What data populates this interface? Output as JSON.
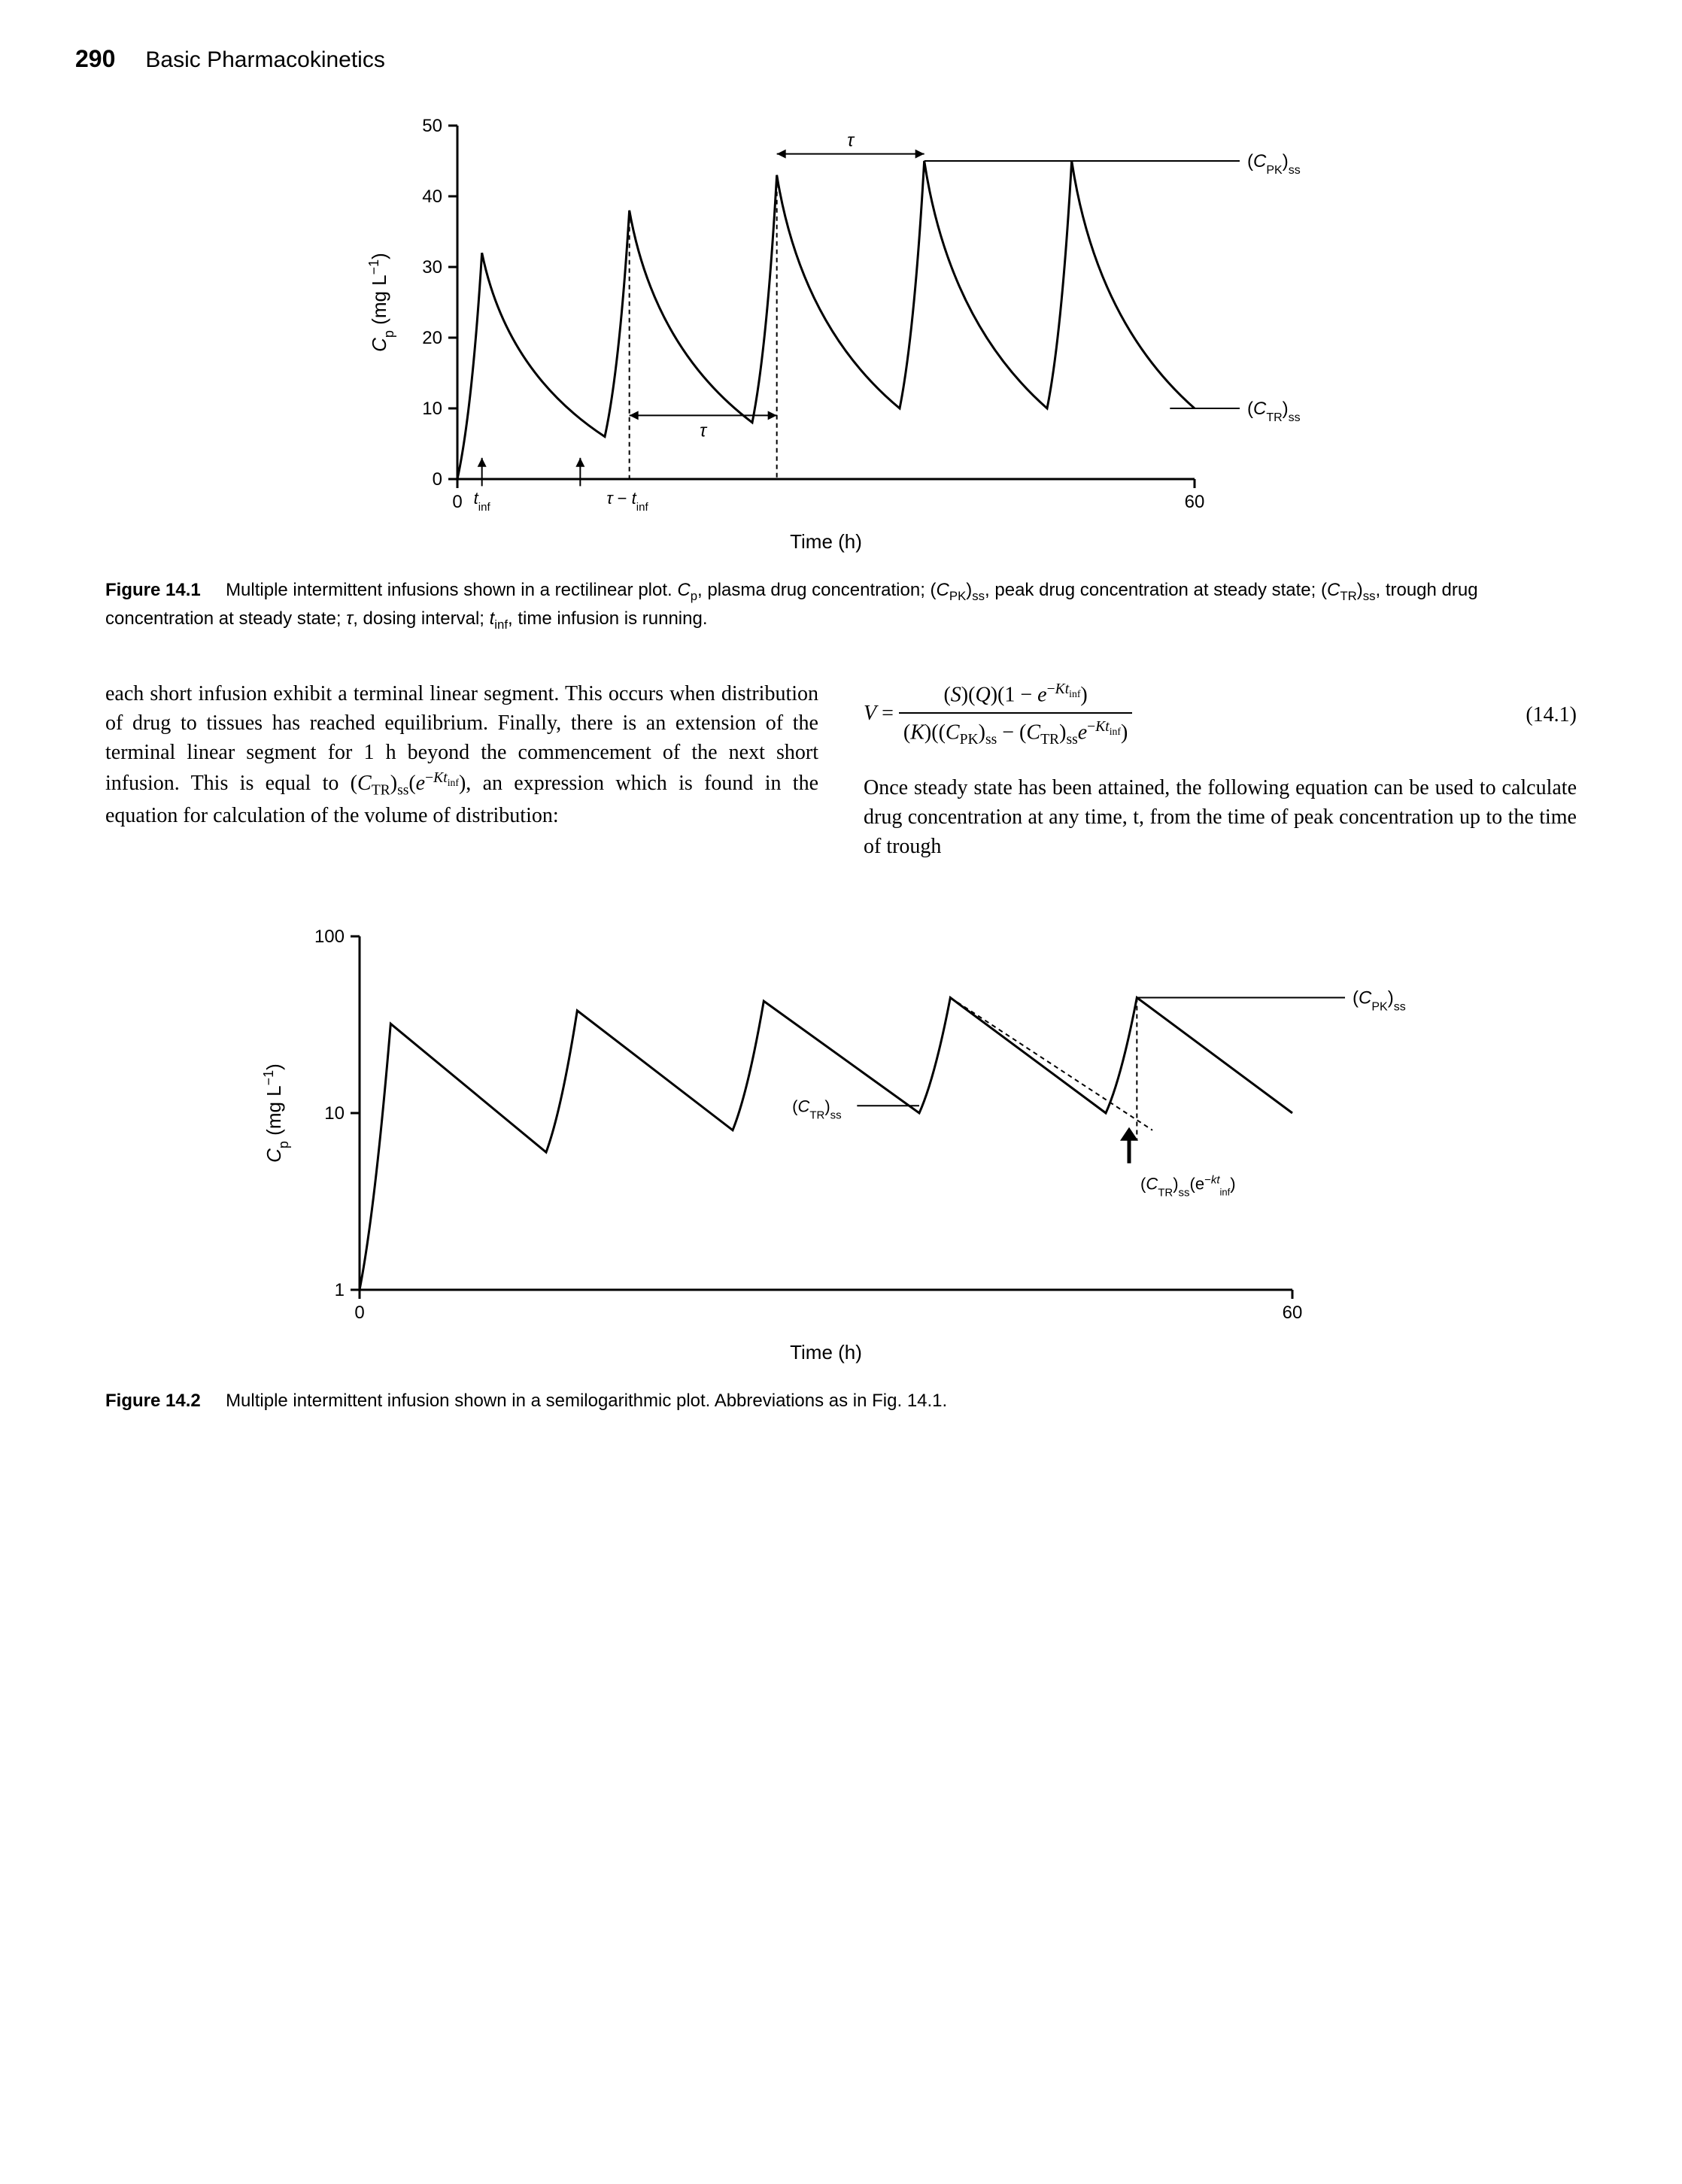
{
  "header": {
    "page_number": "290",
    "title": "Basic Pharmacokinetics"
  },
  "figure1": {
    "type": "line",
    "xlabel": "Time (h)",
    "ylabel": "Cₚ (mg L⁻¹)",
    "xlim": [
      0,
      60
    ],
    "ylim": [
      0,
      50
    ],
    "xticks": [
      0,
      60
    ],
    "yticks": [
      0,
      10,
      20,
      30,
      40,
      50
    ],
    "line_color": "#000000",
    "line_width": 3,
    "background_color": "#ffffff",
    "axis_fontsize": 24,
    "label_fontsize": 26,
    "annotations": {
      "tau_top": "τ",
      "tau_bottom": "τ",
      "tinf": "t_inf",
      "tau_minus_tinf": "τ − t_inf",
      "cpk_ss": "(C_PK)_ss",
      "ctr_ss": "(C_TR)_ss"
    },
    "peaks_x": [
      2,
      14,
      26,
      38,
      50
    ],
    "infusion_duration": 2,
    "dose_interval": 12,
    "peak_values": [
      32,
      38,
      43,
      45,
      45
    ],
    "trough_values": [
      0,
      6,
      8,
      10,
      10,
      10
    ]
  },
  "caption1": {
    "label": "Figure 14.1",
    "text_parts": [
      "Multiple intermittent infusions shown in a rectilinear plot. ",
      "C",
      "p",
      ", plasma drug concentration; (",
      "C",
      "PK",
      ")",
      "ss",
      ", peak drug concentration at steady state; (",
      "C",
      "TR",
      ")",
      "ss",
      ", trough drug concentration at steady state; ",
      "τ",
      ", dosing interval; ",
      "t",
      "inf",
      ", time infusion is running."
    ]
  },
  "body_left": "each short infusion exhibit a terminal linear segment. This occurs when distribution of drug to tissues has reached equilibrium. Finally, there is an extension of the terminal linear segment for 1 h beyond the commencement of the next short infusion. This is equal to (C_TR)_ss(e^{−Kt_inf}), an expression which is found in the equation for calculation of the volume of distribution:",
  "equation": {
    "lhs": "V",
    "numerator": "(S)(Q)(1 − e^{−Kt_inf})",
    "denominator": "(K)((C_PK)_ss − (C_TR)_ss e^{−Kt_inf})",
    "number": "(14.1)"
  },
  "body_right": "Once steady state has been attained, the following equation can be used to calculate drug concentration at any time, t, from the time of peak concentration up to the time of trough",
  "figure2": {
    "type": "line-log",
    "xlabel": "Time (h)",
    "ylabel": "Cₚ (mg L⁻¹)",
    "xlim": [
      0,
      60
    ],
    "ylim": [
      1,
      100
    ],
    "xticks": [
      0,
      60
    ],
    "yticks": [
      1,
      10,
      100
    ],
    "line_color": "#000000",
    "line_width": 3,
    "background_color": "#ffffff",
    "axis_fontsize": 24,
    "label_fontsize": 26,
    "annotations": {
      "cpk_ss": "(C_PK)_ss",
      "ctr_ss": "(C_TR)_ss",
      "ctr_exp": "(C_TR)_ss(e^{−kt_inf})"
    },
    "peaks_x": [
      2,
      14,
      26,
      38,
      50
    ],
    "infusion_duration": 2,
    "dose_interval": 12,
    "peak_values": [
      32,
      38,
      43,
      45,
      45
    ],
    "trough_values": [
      1,
      6,
      8,
      10,
      10,
      10
    ]
  },
  "caption2": {
    "label": "Figure 14.2",
    "text": "Multiple intermittent infusion shown in a semilogarithmic plot. Abbreviations as in Fig. 14.1."
  }
}
